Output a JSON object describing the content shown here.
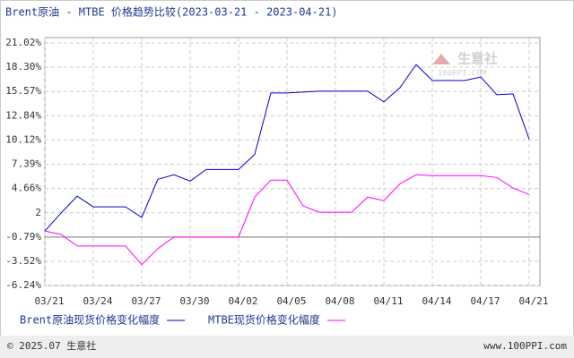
{
  "chart_data": {
    "type": "line",
    "title": "Brent原油 - MTBE 价格趋势比较(2023-03-21 - 2023-04-21)",
    "categories": [
      "03/21",
      null,
      null,
      "03/24",
      null,
      null,
      "03/27",
      null,
      null,
      "03/30",
      null,
      null,
      "04/02",
      null,
      null,
      "04/05",
      null,
      null,
      "04/08",
      null,
      null,
      "04/11",
      null,
      null,
      "04/14",
      null,
      null,
      "04/17",
      null,
      null,
      "04/21"
    ],
    "series": [
      {
        "name": "Brent原油现货价格变化幅度",
        "color": "#0000cc",
        "values": [
          -0.11,
          1.9,
          3.8,
          2.6,
          2.6,
          2.6,
          1.4,
          5.7,
          6.2,
          5.5,
          6.8,
          6.8,
          6.8,
          8.5,
          15.4,
          15.4,
          15.5,
          15.6,
          15.6,
          15.6,
          15.6,
          14.4,
          16.0,
          18.6,
          16.8,
          16.8,
          16.8,
          17.2,
          15.2,
          15.3,
          10.2
        ]
      },
      {
        "name": "MTBE现货价格变化幅度",
        "color": "#ff00ff",
        "values": [
          -0.11,
          -0.5,
          -1.8,
          -1.8,
          -1.8,
          -1.8,
          -3.9,
          -2.1,
          -0.8,
          -0.8,
          -0.8,
          -0.8,
          -0.8,
          3.7,
          5.6,
          5.6,
          2.7,
          2.0,
          2.0,
          2.0,
          3.7,
          3.3,
          5.2,
          6.2,
          6.1,
          6.1,
          6.1,
          6.1,
          5.9,
          4.7,
          4.0
        ]
      }
    ],
    "ylim": [
      -6.24,
      21.02
    ],
    "yticks": [
      {
        "value": 21.02,
        "label": "21.02%"
      },
      {
        "value": 18.3,
        "label": "18.30%"
      },
      {
        "value": 15.57,
        "label": "15.57%"
      },
      {
        "value": 12.84,
        "label": "12.84%"
      },
      {
        "value": 10.12,
        "label": "10.12%"
      },
      {
        "value": 7.39,
        "label": "7.39%"
      },
      {
        "value": 4.66,
        "label": "4.66%"
      },
      {
        "value": 1.93,
        "label": "2"
      },
      {
        "value": -0.79,
        "label": "-0.79%"
      },
      {
        "value": -3.52,
        "label": "-3.52%"
      },
      {
        "value": -6.24,
        "label": "-6.24%"
      }
    ],
    "grid": true,
    "watermark": {
      "name": "生意社",
      "site": "100PPI.COM"
    },
    "footer": {
      "copyright": "© 2025.07 生意社",
      "site": "www.100PPI.com"
    }
  }
}
